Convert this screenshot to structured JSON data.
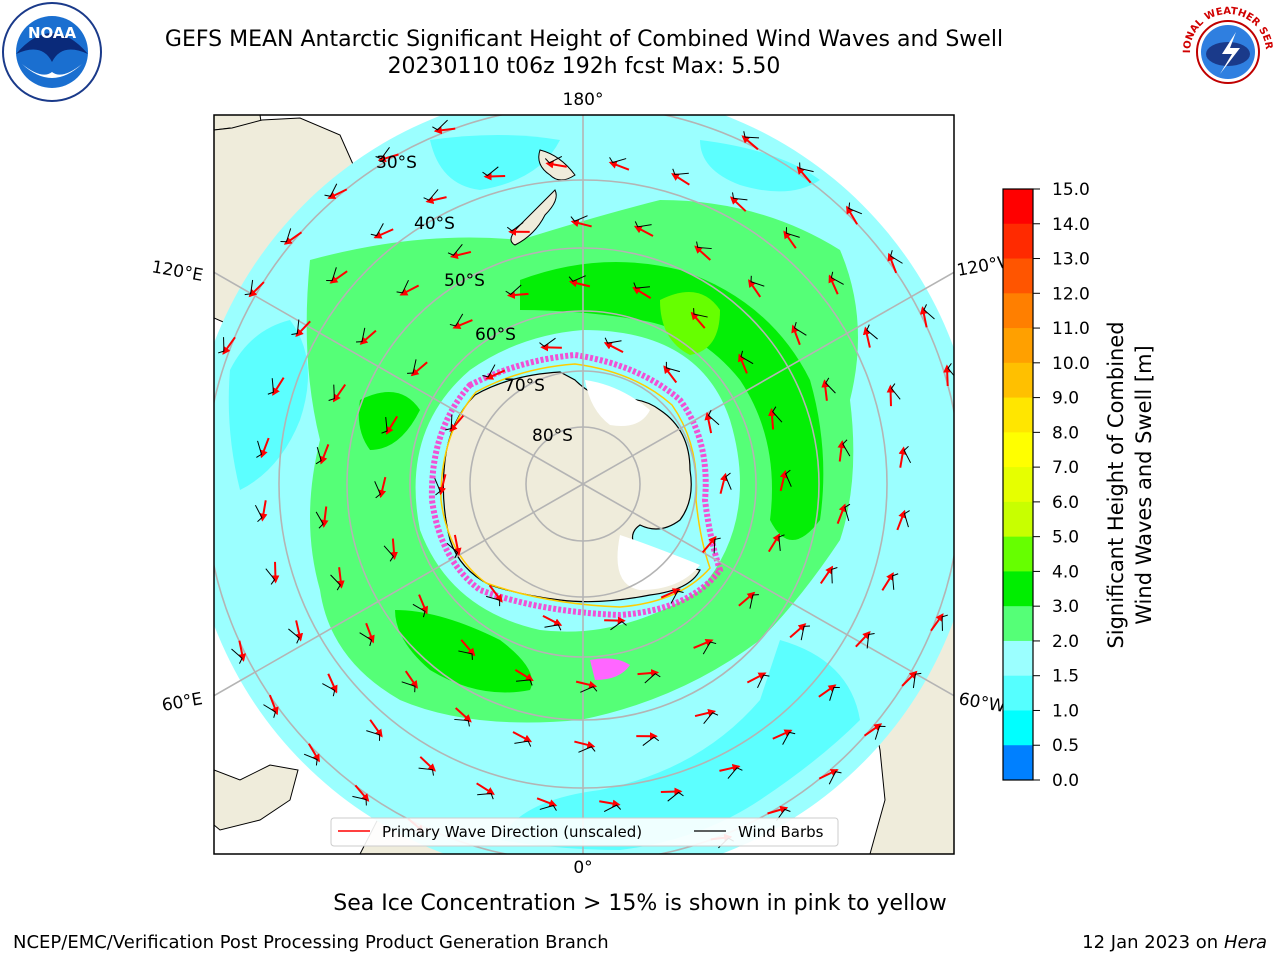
{
  "header": {
    "title_line1": "GEFS MEAN Antarctic Significant Height of Combined Wind Waves and Swell",
    "title_line2": "20230110 t06z 192h fcst   Max: 5.50"
  },
  "logos": {
    "left": {
      "icon": "noaa-logo",
      "text": "NOAA"
    },
    "right": {
      "icon": "national-weather-service-logo",
      "text": "NATIONAL WEATHER SERVICE"
    }
  },
  "map": {
    "projection": "south-polar-stereographic",
    "longitude_labels": {
      "top": "180°",
      "upper_left": "120°E",
      "upper_right": "120°W",
      "lower_left": "60°E",
      "lower_right": "60°W",
      "bottom": "0°"
    },
    "latitude_labels": [
      "30°S",
      "40°S",
      "50°S",
      "60°S",
      "70°S",
      "80°S"
    ],
    "colors": {
      "land": "#efecdb",
      "ocean_base": "#9bffff",
      "grid": "#b4b4b4",
      "coast": "#000000",
      "arrow": "#ff0000"
    }
  },
  "legend": {
    "primary_wave": "Primary Wave Direction (unscaled)",
    "wind_barbs": "Wind Barbs"
  },
  "colorbar": {
    "label_line1": "Significant Height of Combined",
    "label_line2": "Wind Waves and Swell [m]",
    "ticks": [
      "15.0",
      "14.0",
      "13.0",
      "12.0",
      "11.0",
      "10.0",
      "9.0",
      "8.0",
      "7.0",
      "6.0",
      "5.0",
      "4.0",
      "3.0",
      "2.0",
      "1.5",
      "1.0",
      "0.5",
      "0.0"
    ],
    "colors_top_to_bottom": [
      "#ff0000",
      "#ff2a00",
      "#ff5500",
      "#ff7f00",
      "#ffa000",
      "#ffc000",
      "#ffe600",
      "#ffff00",
      "#e6ff00",
      "#c8ff00",
      "#66ff00",
      "#00ee00",
      "#55ff77",
      "#9bffff",
      "#55ffff",
      "#00ffff",
      "#0080ff",
      "#0000ff"
    ]
  },
  "caption": "Sea Ice Concentration > 15% is shown in pink to yellow",
  "footer": {
    "left": "NCEP/EMC/Verification Post Processing Product Generation Branch",
    "right_date": "12 Jan 2023 on ",
    "right_machine": "Hera"
  }
}
